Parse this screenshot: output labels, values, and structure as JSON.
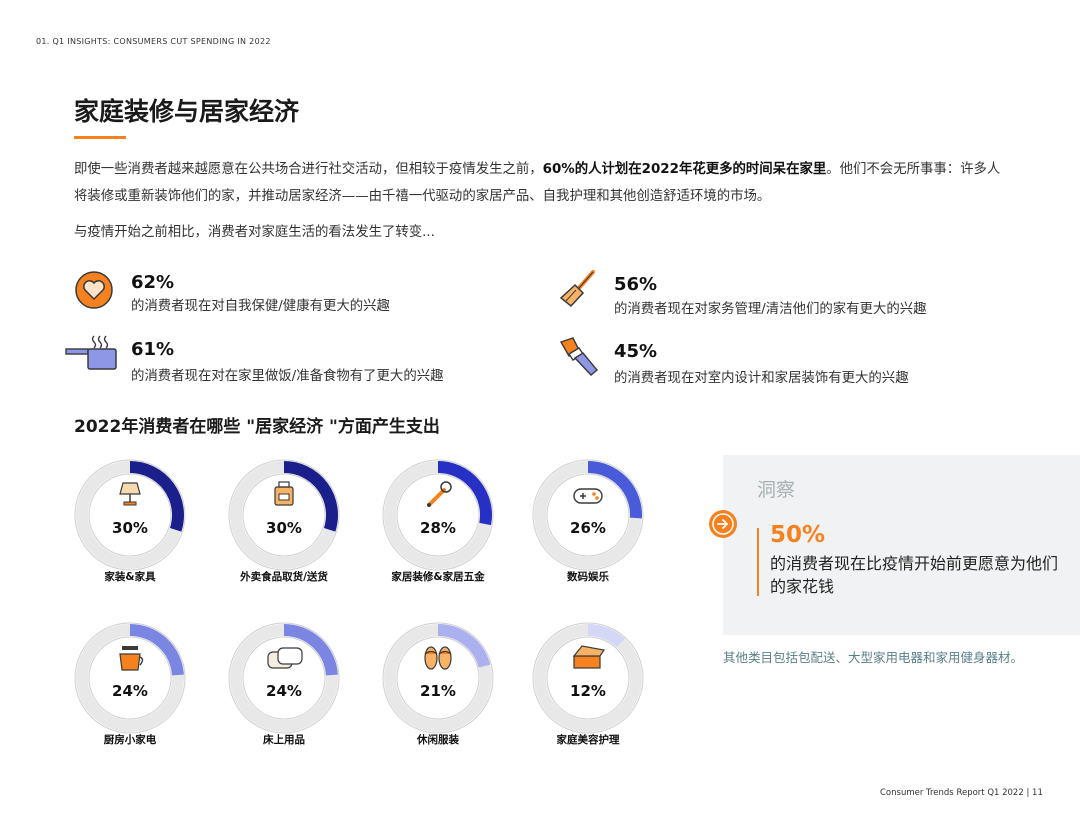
{
  "header": {
    "section_label": "01. Q1 INSIGHTS: CONSUMERS CUT SPENDING IN 2022"
  },
  "page": {
    "title": "家庭装修与居家经济",
    "intro_part1": "即使一些消费者越来越愿意在公共场合进行社交活动，但相较于疫情发生之前，",
    "intro_bold": "60%的人计划在2022年花更多的时间呆在家里",
    "intro_part2": "。他们不会无所事事：许多人将装修或重新装饰他们的家，并推动居家经济——由千禧一代驱动的家居产品、自我护理和其他创造舒适环境的市场。",
    "lead": "与疫情开始之前相比，消费者对家庭生活的看法发生了转变..."
  },
  "stats": [
    {
      "pct": "62%",
      "desc": "的消费者现在对自我保健/健康有更大的兴趣",
      "icon": "heart-icon"
    },
    {
      "pct": "56%",
      "desc": "的消费者现在对家务管理/清洁他们的家有更大的兴趣",
      "icon": "broom-icon"
    },
    {
      "pct": "61%",
      "desc": "的消费者现在对在家里做饭/准备食物有了更大的兴趣",
      "icon": "cooking-pot-icon"
    },
    {
      "pct": "45%",
      "desc": "的消费者现在对室内设计和家居装饰有更大的兴趣",
      "icon": "paint-brush-icon"
    }
  ],
  "spending": {
    "heading": "2022年消费者在哪些 \"居家经济 \"方面产生支出",
    "items": [
      {
        "label": "家装&家具",
        "value": 30,
        "pct": "30%",
        "color": "#1a1f8c",
        "icon": "lamp-icon"
      },
      {
        "label": "外卖食品取货/送货",
        "value": 30,
        "pct": "30%",
        "color": "#1a1f8c",
        "icon": "takeout-bag-icon"
      },
      {
        "label": "家居装修&家居五金",
        "value": 28,
        "pct": "28%",
        "color": "#2630c4",
        "icon": "wrench-icon"
      },
      {
        "label": "数码娱乐",
        "value": 26,
        "pct": "26%",
        "color": "#4a5bd9",
        "icon": "gamepad-icon"
      },
      {
        "label": "厨房小家电",
        "value": 24,
        "pct": "24%",
        "color": "#7b86e3",
        "icon": "coffee-maker-icon"
      },
      {
        "label": "床上用品",
        "value": 24,
        "pct": "24%",
        "color": "#7b86e3",
        "icon": "pillow-icon"
      },
      {
        "label": "休闲服装",
        "value": 21,
        "pct": "21%",
        "color": "#aab1ee",
        "icon": "slippers-icon"
      },
      {
        "label": "家庭美容护理",
        "value": 12,
        "pct": "12%",
        "color": "#d4d8f6",
        "icon": "beauty-box-icon"
      }
    ]
  },
  "insight": {
    "title": "洞察",
    "pct": "50%",
    "text": "的消费者现在比疫情开始前更愿意为他们的家花钱"
  },
  "other_note": "其他类目包括包配送、大型家用电器和家用健身器材。",
  "footer": {
    "report": "Consumer Trends Report Q1 2022  |",
    "page_number": "11"
  },
  "colors": {
    "accent": "#f5821f",
    "ring_track": "#e8e8e8",
    "ring_border": "#cfcfcf"
  }
}
